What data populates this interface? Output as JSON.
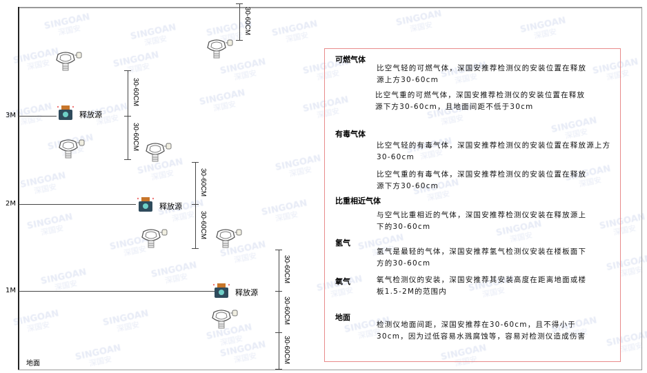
{
  "watermark": {
    "brand": "SINGOAN",
    "cn": "深国安"
  },
  "levels": {
    "l3": "3M",
    "l2": "2M",
    "l1": "1M",
    "ground": "地面"
  },
  "source_label": "释放源",
  "dimension_label": "30-60CM",
  "colors": {
    "box_border": "#e88a8a",
    "source_body": "#2f4b5c",
    "source_cap": "#c8762a"
  },
  "legend": {
    "combustible": {
      "title": "可燃气体",
      "light": "比空气轻的可燃气体，深国安推荐检测仪的安装位置在释放源上方30-60cm",
      "heavy": "比空气重的可燃气体，深国安推荐检测仪的安装位置在释放源下方30-60cm，且地面间距不低于30cm"
    },
    "toxic": {
      "title": "有毒气体",
      "light": "比空气轻的有毒气体，深国安推荐检测仪的安装位置在释放源上方30-60cm",
      "heavy": "比空气重的有毒气体，深国安推荐检测仪的安装位置在释放源下方30-60cm"
    },
    "similar": {
      "title": "比重相近气体",
      "text": "与空气比重相近的气体，深国安推荐检测仪安装在释放源上下的30-60cm"
    },
    "hydrogen": {
      "title": "氢气",
      "text": "氢气是最轻的气体，深国安推荐氢气检测仪安装在楼板面下方的30-60cm"
    },
    "oxygen": {
      "title": "氧气",
      "text": "氧气检测仪的安装，深国安推荐其安装高度在距离地面或楼板1.5-2M的范围内"
    },
    "ground": {
      "title": "地面",
      "text": "检测仪地面间距，深国安推荐在30-60cm，且不得小于30cm，因为过低容易水溅腐蚀等，容易对检测仪造成伤害"
    }
  }
}
